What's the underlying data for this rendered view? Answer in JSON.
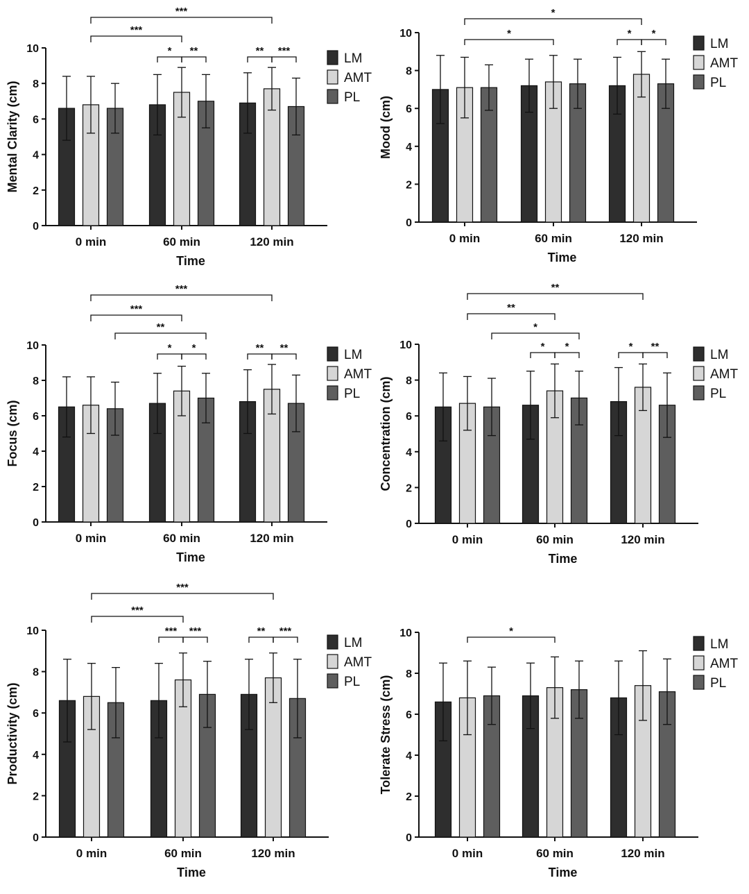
{
  "chart_data": [
    {
      "type": "bar",
      "categories": [
        "0 min",
        "60 min",
        "120 min"
      ],
      "xlabel": "Time",
      "ylabel": "Mental Clarity (cm)",
      "ylim": [
        0,
        10
      ],
      "yticks": [
        0,
        2,
        4,
        6,
        8,
        10
      ],
      "series": [
        {
          "name": "LM",
          "values": [
            6.6,
            6.8,
            6.9
          ],
          "err": [
            1.8,
            1.7,
            1.7
          ]
        },
        {
          "name": "AMT",
          "values": [
            6.8,
            7.5,
            7.7
          ],
          "err": [
            1.6,
            1.4,
            1.2
          ]
        },
        {
          "name": "PL",
          "values": [
            6.6,
            7.0,
            6.7
          ],
          "err": [
            1.4,
            1.5,
            1.6
          ]
        }
      ],
      "significance": [
        {
          "from": [
            0,
            1
          ],
          "to": [
            2,
            1
          ],
          "label": "***",
          "level": 2
        },
        {
          "from": [
            0,
            1
          ],
          "to": [
            1,
            1
          ],
          "label": "***",
          "level": 1
        },
        {
          "from": [
            1,
            0
          ],
          "to": [
            1,
            1
          ],
          "label": "*",
          "level": 0
        },
        {
          "from": [
            1,
            1
          ],
          "to": [
            1,
            2
          ],
          "label": "**",
          "level": 0
        },
        {
          "from": [
            2,
            0
          ],
          "to": [
            2,
            1
          ],
          "label": "**",
          "level": 0
        },
        {
          "from": [
            2,
            1
          ],
          "to": [
            2,
            2
          ],
          "label": "***",
          "level": 0
        }
      ],
      "legend_position": "right"
    },
    {
      "type": "bar",
      "categories": [
        "0 min",
        "60 min",
        "120 min"
      ],
      "xlabel": "Time",
      "ylabel": "Mood (cm)",
      "ylim": [
        0,
        10
      ],
      "yticks": [
        0,
        2,
        4,
        6,
        8,
        10
      ],
      "series": [
        {
          "name": "LM",
          "values": [
            7.0,
            7.2,
            7.2
          ],
          "err": [
            1.8,
            1.4,
            1.5
          ]
        },
        {
          "name": "AMT",
          "values": [
            7.1,
            7.4,
            7.8
          ],
          "err": [
            1.6,
            1.4,
            1.2
          ]
        },
        {
          "name": "PL",
          "values": [
            7.1,
            7.3,
            7.3
          ],
          "err": [
            1.2,
            1.3,
            1.3
          ]
        }
      ],
      "significance": [
        {
          "from": [
            0,
            1
          ],
          "to": [
            2,
            1
          ],
          "label": "*",
          "level": 1
        },
        {
          "from": [
            0,
            1
          ],
          "to": [
            1,
            1
          ],
          "label": "*",
          "level": 0
        },
        {
          "from": [
            2,
            0
          ],
          "to": [
            2,
            1
          ],
          "label": "*",
          "level": 0
        },
        {
          "from": [
            2,
            1
          ],
          "to": [
            2,
            2
          ],
          "label": "*",
          "level": 0
        }
      ],
      "legend_position": "right"
    },
    {
      "type": "bar",
      "categories": [
        "0 min",
        "60 min",
        "120 min"
      ],
      "xlabel": "Time",
      "ylabel": "Focus (cm)",
      "ylim": [
        0,
        10
      ],
      "yticks": [
        0,
        2,
        4,
        6,
        8,
        10
      ],
      "series": [
        {
          "name": "LM",
          "values": [
            6.5,
            6.7,
            6.8
          ],
          "err": [
            1.7,
            1.7,
            1.8
          ]
        },
        {
          "name": "AMT",
          "values": [
            6.6,
            7.4,
            7.5
          ],
          "err": [
            1.6,
            1.4,
            1.4
          ]
        },
        {
          "name": "PL",
          "values": [
            6.4,
            7.0,
            6.7
          ],
          "err": [
            1.5,
            1.4,
            1.6
          ]
        }
      ],
      "significance": [
        {
          "from": [
            0,
            1
          ],
          "to": [
            2,
            1
          ],
          "label": "***",
          "level": 3
        },
        {
          "from": [
            0,
            1
          ],
          "to": [
            1,
            1
          ],
          "label": "***",
          "level": 2
        },
        {
          "from": [
            0,
            2
          ],
          "to": [
            1,
            2
          ],
          "label": "**",
          "level": 1
        },
        {
          "from": [
            1,
            0
          ],
          "to": [
            1,
            1
          ],
          "label": "*",
          "level": 0
        },
        {
          "from": [
            1,
            1
          ],
          "to": [
            1,
            2
          ],
          "label": "*",
          "level": 0
        },
        {
          "from": [
            2,
            0
          ],
          "to": [
            2,
            1
          ],
          "label": "**",
          "level": 0
        },
        {
          "from": [
            2,
            1
          ],
          "to": [
            2,
            2
          ],
          "label": "**",
          "level": 0
        }
      ],
      "legend_position": "right"
    },
    {
      "type": "bar",
      "categories": [
        "0 min",
        "60 min",
        "120 min"
      ],
      "xlabel": "Time",
      "ylabel": "Concentration (cm)",
      "ylim": [
        0,
        10
      ],
      "yticks": [
        0,
        2,
        4,
        6,
        8,
        10
      ],
      "series": [
        {
          "name": "LM",
          "values": [
            6.5,
            6.6,
            6.8
          ],
          "err": [
            1.9,
            1.9,
            1.9
          ]
        },
        {
          "name": "AMT",
          "values": [
            6.7,
            7.4,
            7.6
          ],
          "err": [
            1.5,
            1.5,
            1.3
          ]
        },
        {
          "name": "PL",
          "values": [
            6.5,
            7.0,
            6.6
          ],
          "err": [
            1.6,
            1.5,
            1.8
          ]
        }
      ],
      "significance": [
        {
          "from": [
            0,
            1
          ],
          "to": [
            2,
            1
          ],
          "label": "**",
          "level": 3
        },
        {
          "from": [
            0,
            1
          ],
          "to": [
            1,
            1
          ],
          "label": "**",
          "level": 2
        },
        {
          "from": [
            0,
            2
          ],
          "to": [
            1,
            2
          ],
          "label": "*",
          "level": 1
        },
        {
          "from": [
            1,
            0
          ],
          "to": [
            1,
            1
          ],
          "label": "*",
          "level": 0
        },
        {
          "from": [
            1,
            1
          ],
          "to": [
            1,
            2
          ],
          "label": "*",
          "level": 0
        },
        {
          "from": [
            2,
            0
          ],
          "to": [
            2,
            1
          ],
          "label": "*",
          "level": 0
        },
        {
          "from": [
            2,
            1
          ],
          "to": [
            2,
            2
          ],
          "label": "**",
          "level": 0
        }
      ],
      "legend_position": "right"
    },
    {
      "type": "bar",
      "categories": [
        "0 min",
        "60 min",
        "120 min"
      ],
      "xlabel": "Time",
      "ylabel": "Productivity (cm)",
      "ylim": [
        0,
        10
      ],
      "yticks": [
        0,
        2,
        4,
        6,
        8,
        10
      ],
      "series": [
        {
          "name": "LM",
          "values": [
            6.6,
            6.6,
            6.9
          ],
          "err": [
            2.0,
            1.8,
            1.7
          ]
        },
        {
          "name": "AMT",
          "values": [
            6.8,
            7.6,
            7.7
          ],
          "err": [
            1.6,
            1.3,
            1.2
          ]
        },
        {
          "name": "PL",
          "values": [
            6.5,
            6.9,
            6.7
          ],
          "err": [
            1.7,
            1.6,
            1.9
          ]
        }
      ],
      "significance": [
        {
          "from": [
            0,
            1
          ],
          "to": [
            2,
            1
          ],
          "label": "***",
          "level": 2
        },
        {
          "from": [
            0,
            1
          ],
          "to": [
            1,
            1
          ],
          "label": "***",
          "level": 1
        },
        {
          "from": [
            1,
            0
          ],
          "to": [
            1,
            1
          ],
          "label": "***",
          "level": 0
        },
        {
          "from": [
            1,
            1
          ],
          "to": [
            1,
            2
          ],
          "label": "***",
          "level": 0
        },
        {
          "from": [
            2,
            0
          ],
          "to": [
            2,
            1
          ],
          "label": "**",
          "level": 0
        },
        {
          "from": [
            2,
            1
          ],
          "to": [
            2,
            2
          ],
          "label": "***",
          "level": 0
        }
      ],
      "legend_position": "right"
    },
    {
      "type": "bar",
      "categories": [
        "0 min",
        "60 min",
        "120 min"
      ],
      "xlabel": "Time",
      "ylabel": "Tolerate Stress (cm)",
      "ylim": [
        0,
        10
      ],
      "yticks": [
        0,
        2,
        4,
        6,
        8,
        10
      ],
      "series": [
        {
          "name": "LM",
          "values": [
            6.6,
            6.9,
            6.8
          ],
          "err": [
            1.9,
            1.6,
            1.8
          ]
        },
        {
          "name": "AMT",
          "values": [
            6.8,
            7.3,
            7.4
          ],
          "err": [
            1.8,
            1.5,
            1.7
          ]
        },
        {
          "name": "PL",
          "values": [
            6.9,
            7.2,
            7.1
          ],
          "err": [
            1.4,
            1.4,
            1.6
          ]
        }
      ],
      "significance": [
        {
          "from": [
            0,
            1
          ],
          "to": [
            1,
            1
          ],
          "label": "*",
          "level": 0
        }
      ],
      "legend_position": "right"
    }
  ],
  "colors": {
    "LM": "#2e2e2e",
    "AMT": "#d6d6d6",
    "PL": "#5e5e5e",
    "axis": "#111111"
  }
}
